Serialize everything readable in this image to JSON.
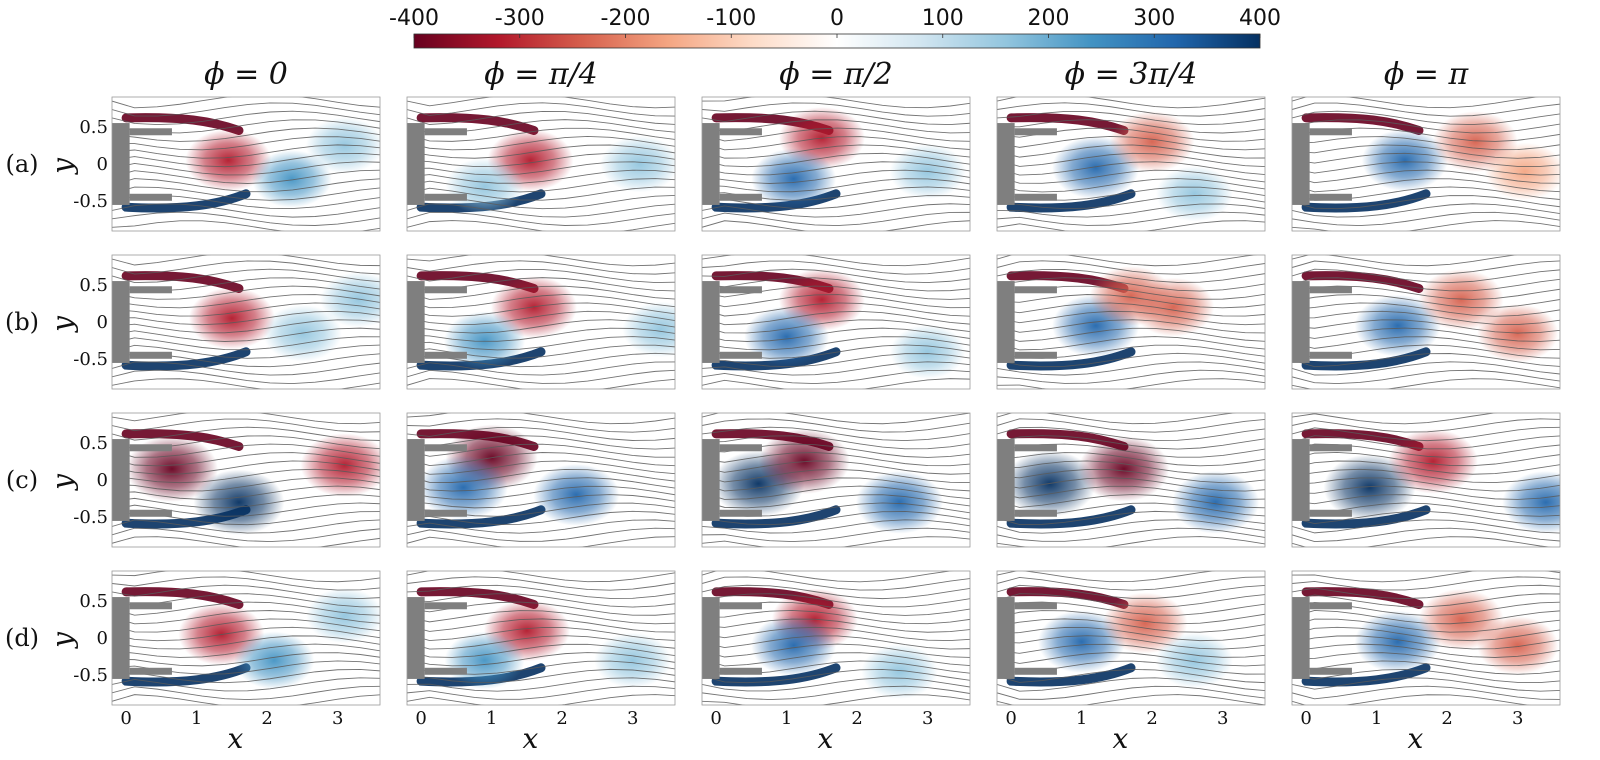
{
  "colorbar": {
    "ticks": [
      "-400",
      "-300",
      "-200",
      "-100",
      "0",
      "100",
      "200",
      "300",
      "400"
    ],
    "range": [
      -400,
      400
    ],
    "colors": [
      "#67001f",
      "#b2182b",
      "#d6604d",
      "#f4a582",
      "#fddbc7",
      "#ffffff",
      "#d1e5f0",
      "#92c5de",
      "#4393c3",
      "#2166ac",
      "#053061"
    ]
  },
  "columns": [
    "ϕ = 0",
    "ϕ = π/4",
    "ϕ = π/2",
    "ϕ = 3π/4",
    "ϕ = π"
  ],
  "rows": [
    "(a)",
    "(b)",
    "(c)",
    "(d)"
  ],
  "axes": {
    "xlabel": "x",
    "ylabel": "y",
    "xticks": [
      "0",
      "1",
      "2",
      "3"
    ],
    "yticks": [
      "0.5",
      "0",
      "-0.5"
    ],
    "xlim": [
      -0.2,
      3.6
    ],
    "ylim": [
      -0.9,
      0.9
    ]
  },
  "chart_data": {
    "type": "heatmap",
    "title": "",
    "xlabel": "x",
    "ylabel": "y",
    "xlim": [
      -0.2,
      3.6
    ],
    "ylim": [
      -0.9,
      0.9
    ],
    "color_range": [
      -400,
      400
    ],
    "columns": [
      "ϕ = 0",
      "ϕ = π/4",
      "ϕ = π/2",
      "ϕ = 3π/4",
      "ϕ = π"
    ],
    "rows": [
      "(a)",
      "(b)",
      "(c)",
      "(d)"
    ],
    "vortices": [
      [
        [
          {
            "x": 1.45,
            "y": 0.05,
            "v": -300
          },
          {
            "x": 2.35,
            "y": -0.2,
            "v": 200
          },
          {
            "x": 3.1,
            "y": 0.25,
            "v": 160
          }
        ],
        [
          {
            "x": 1.55,
            "y": 0.05,
            "v": -300
          },
          {
            "x": 0.9,
            "y": -0.3,
            "v": 180
          },
          {
            "x": 3.1,
            "y": 0.0,
            "v": 180
          }
        ],
        [
          {
            "x": 1.5,
            "y": 0.35,
            "v": -300
          },
          {
            "x": 1.1,
            "y": -0.2,
            "v": 280
          },
          {
            "x": 3.0,
            "y": -0.1,
            "v": 140
          }
        ],
        [
          {
            "x": 1.2,
            "y": -0.05,
            "v": 320
          },
          {
            "x": 2.0,
            "y": 0.3,
            "v": -280
          },
          {
            "x": 2.6,
            "y": -0.4,
            "v": 150
          }
        ],
        [
          {
            "x": 1.4,
            "y": 0.05,
            "v": 300
          },
          {
            "x": 2.4,
            "y": 0.3,
            "v": -280
          },
          {
            "x": 3.1,
            "y": -0.1,
            "v": -200
          }
        ]
      ],
      [
        [
          {
            "x": 1.5,
            "y": 0.05,
            "v": -300
          },
          {
            "x": 2.5,
            "y": -0.15,
            "v": 180
          },
          {
            "x": 3.3,
            "y": 0.3,
            "v": 150
          }
        ],
        [
          {
            "x": 1.6,
            "y": 0.2,
            "v": -300
          },
          {
            "x": 0.9,
            "y": -0.25,
            "v": 220
          },
          {
            "x": 3.4,
            "y": -0.1,
            "v": 150
          }
        ],
        [
          {
            "x": 1.5,
            "y": 0.3,
            "v": -300
          },
          {
            "x": 1.0,
            "y": -0.2,
            "v": 280
          },
          {
            "x": 3.0,
            "y": -0.4,
            "v": 120
          }
        ],
        [
          {
            "x": 1.2,
            "y": -0.05,
            "v": 320
          },
          {
            "x": 1.7,
            "y": 0.35,
            "v": -250
          },
          {
            "x": 2.3,
            "y": 0.2,
            "v": -230
          }
        ],
        [
          {
            "x": 1.3,
            "y": -0.05,
            "v": 300
          },
          {
            "x": 2.2,
            "y": 0.3,
            "v": -280
          },
          {
            "x": 3.0,
            "y": -0.15,
            "v": -220
          }
        ]
      ],
      [
        [
          {
            "x": 0.65,
            "y": 0.15,
            "v": -400
          },
          {
            "x": 1.6,
            "y": -0.3,
            "v": 380
          },
          {
            "x": 3.1,
            "y": 0.2,
            "v": -340
          }
        ],
        [
          {
            "x": 1.0,
            "y": 0.3,
            "v": -400
          },
          {
            "x": 0.6,
            "y": -0.1,
            "v": 350
          },
          {
            "x": 2.2,
            "y": -0.2,
            "v": 300
          }
        ],
        [
          {
            "x": 0.6,
            "y": -0.05,
            "v": 400
          },
          {
            "x": 1.25,
            "y": 0.25,
            "v": -380
          },
          {
            "x": 2.6,
            "y": -0.3,
            "v": 320
          }
        ],
        [
          {
            "x": 0.55,
            "y": -0.05,
            "v": 400
          },
          {
            "x": 1.6,
            "y": 0.15,
            "v": -380
          },
          {
            "x": 2.9,
            "y": -0.3,
            "v": 320
          }
        ],
        [
          {
            "x": 0.9,
            "y": -0.1,
            "v": 400
          },
          {
            "x": 1.8,
            "y": 0.25,
            "v": -360
          },
          {
            "x": 3.4,
            "y": -0.3,
            "v": 320
          }
        ]
      ],
      [
        [
          {
            "x": 1.35,
            "y": 0.05,
            "v": -300
          },
          {
            "x": 2.1,
            "y": -0.3,
            "v": 200
          },
          {
            "x": 3.1,
            "y": 0.3,
            "v": 150
          }
        ],
        [
          {
            "x": 1.5,
            "y": 0.1,
            "v": -300
          },
          {
            "x": 0.9,
            "y": -0.3,
            "v": 200
          },
          {
            "x": 3.0,
            "y": -0.3,
            "v": 150
          }
        ],
        [
          {
            "x": 1.4,
            "y": 0.25,
            "v": -300
          },
          {
            "x": 1.1,
            "y": -0.1,
            "v": 280
          },
          {
            "x": 2.6,
            "y": -0.45,
            "v": 140
          }
        ],
        [
          {
            "x": 1.0,
            "y": -0.05,
            "v": 320
          },
          {
            "x": 1.9,
            "y": 0.2,
            "v": -280
          },
          {
            "x": 2.6,
            "y": -0.3,
            "v": 150
          }
        ],
        [
          {
            "x": 1.3,
            "y": -0.05,
            "v": 300
          },
          {
            "x": 2.2,
            "y": 0.25,
            "v": -280
          },
          {
            "x": 3.0,
            "y": -0.1,
            "v": -220
          }
        ]
      ]
    ]
  }
}
